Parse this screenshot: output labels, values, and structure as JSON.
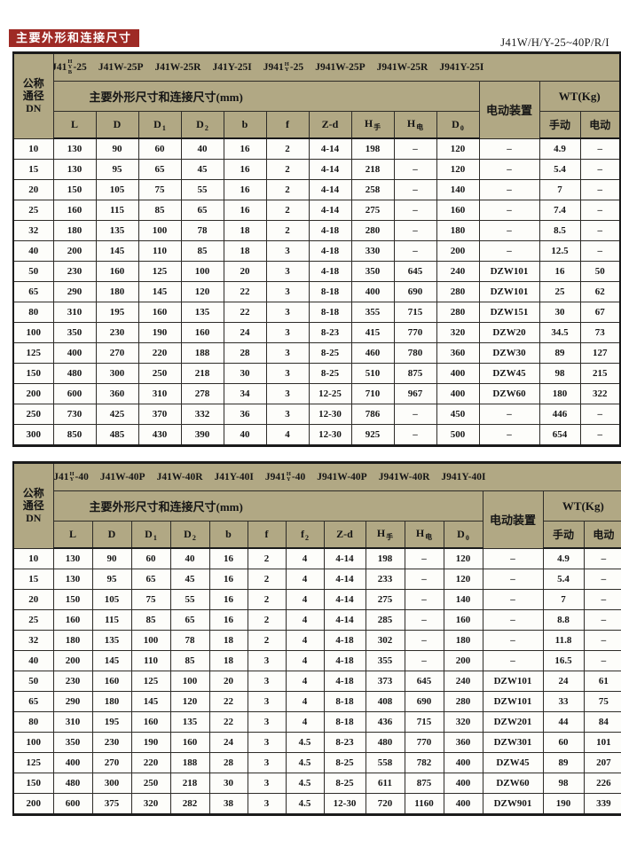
{
  "header": {
    "doc_code": "J41W/H/Y-25~40P/R/I",
    "banner": "主要外形和连接尺寸"
  },
  "labels": {
    "dn_l1": "公称",
    "dn_l2": "通径",
    "dn_l3": "DN",
    "dims_title": "主要外形尺寸和连接尺寸(mm)",
    "device": "电动装置",
    "wt": "WT(Kg)",
    "manual": "手动",
    "electric": "电动"
  },
  "colors": {
    "banner_bg": "#9e2a25",
    "banner_text": "#ffffff",
    "header_bg": "#b1a884",
    "row_bg": "#fdfdfa",
    "border": "#1b1b1b",
    "text": "#151515"
  },
  "tables": [
    {
      "models": [
        {
          "prefix": "J41",
          "stack": [
            "H",
            "Y",
            "B"
          ],
          "suffix": "-25"
        },
        {
          "text": "J41W-25P"
        },
        {
          "text": "J41W-25R"
        },
        {
          "text": "J41Y-25I"
        },
        {
          "prefix": "J941",
          "stack": [
            "H",
            "Y"
          ],
          "suffix": "-25"
        },
        {
          "text": "J941W-25P"
        },
        {
          "text": "J941W-25R"
        },
        {
          "text": "J941Y-25I"
        }
      ],
      "dim_cols": [
        {
          "main": "L"
        },
        {
          "main": "D"
        },
        {
          "main": "D",
          "sub": "1"
        },
        {
          "main": "D",
          "sub": "2"
        },
        {
          "main": "b"
        },
        {
          "main": "f"
        },
        {
          "main": "Z-d"
        },
        {
          "main": "H",
          "sub": "手"
        },
        {
          "main": "H",
          "sub": "电"
        },
        {
          "main": "D",
          "sub": "0"
        }
      ],
      "rows": [
        [
          "10",
          "130",
          "90",
          "60",
          "40",
          "16",
          "2",
          "4-14",
          "198",
          "–",
          "120",
          "–",
          "4.9",
          "–"
        ],
        [
          "15",
          "130",
          "95",
          "65",
          "45",
          "16",
          "2",
          "4-14",
          "218",
          "–",
          "120",
          "–",
          "5.4",
          "–"
        ],
        [
          "20",
          "150",
          "105",
          "75",
          "55",
          "16",
          "2",
          "4-14",
          "258",
          "–",
          "140",
          "–",
          "7",
          "–"
        ],
        [
          "25",
          "160",
          "115",
          "85",
          "65",
          "16",
          "2",
          "4-14",
          "275",
          "–",
          "160",
          "–",
          "7.4",
          "–"
        ],
        [
          "32",
          "180",
          "135",
          "100",
          "78",
          "18",
          "2",
          "4-18",
          "280",
          "–",
          "180",
          "–",
          "8.5",
          "–"
        ],
        [
          "40",
          "200",
          "145",
          "110",
          "85",
          "18",
          "3",
          "4-18",
          "330",
          "–",
          "200",
          "–",
          "12.5",
          "–"
        ],
        [
          "50",
          "230",
          "160",
          "125",
          "100",
          "20",
          "3",
          "4-18",
          "350",
          "645",
          "240",
          "DZW101",
          "16",
          "50"
        ],
        [
          "65",
          "290",
          "180",
          "145",
          "120",
          "22",
          "3",
          "8-18",
          "400",
          "690",
          "280",
          "DZW101",
          "25",
          "62"
        ],
        [
          "80",
          "310",
          "195",
          "160",
          "135",
          "22",
          "3",
          "8-18",
          "355",
          "715",
          "280",
          "DZW151",
          "30",
          "67"
        ],
        [
          "100",
          "350",
          "230",
          "190",
          "160",
          "24",
          "3",
          "8-23",
          "415",
          "770",
          "320",
          "DZW20",
          "34.5",
          "73"
        ],
        [
          "125",
          "400",
          "270",
          "220",
          "188",
          "28",
          "3",
          "8-25",
          "460",
          "780",
          "360",
          "DZW30",
          "89",
          "127"
        ],
        [
          "150",
          "480",
          "300",
          "250",
          "218",
          "30",
          "3",
          "8-25",
          "510",
          "875",
          "400",
          "DZW45",
          "98",
          "215"
        ],
        [
          "200",
          "600",
          "360",
          "310",
          "278",
          "34",
          "3",
          "12-25",
          "710",
          "967",
          "400",
          "DZW60",
          "180",
          "322"
        ],
        [
          "250",
          "730",
          "425",
          "370",
          "332",
          "36",
          "3",
          "12-30",
          "786",
          "–",
          "450",
          "–",
          "446",
          "–"
        ],
        [
          "300",
          "850",
          "485",
          "430",
          "390",
          "40",
          "4",
          "12-30",
          "925",
          "–",
          "500",
          "–",
          "654",
          "–"
        ]
      ]
    },
    {
      "models": [
        {
          "prefix": "J41",
          "stack": [
            "H",
            "Y"
          ],
          "suffix": "-40"
        },
        {
          "text": "J41W-40P"
        },
        {
          "text": "J41W-40R"
        },
        {
          "text": "J41Y-40I"
        },
        {
          "prefix": "J941",
          "stack": [
            "H",
            "Y"
          ],
          "suffix": "-40"
        },
        {
          "text": "J941W-40P"
        },
        {
          "text": "J941W-40R"
        },
        {
          "text": "J941Y-40I"
        }
      ],
      "dim_cols": [
        {
          "main": "L"
        },
        {
          "main": "D"
        },
        {
          "main": "D",
          "sub": "1"
        },
        {
          "main": "D",
          "sub": "2"
        },
        {
          "main": "b"
        },
        {
          "main": "f"
        },
        {
          "main": "f",
          "sub": "2"
        },
        {
          "main": "Z-d"
        },
        {
          "main": "H",
          "sub": "手"
        },
        {
          "main": "H",
          "sub": "电"
        },
        {
          "main": "D",
          "sub": "0"
        }
      ],
      "rows": [
        [
          "10",
          "130",
          "90",
          "60",
          "40",
          "16",
          "2",
          "4",
          "4-14",
          "198",
          "–",
          "120",
          "–",
          "4.9",
          "–"
        ],
        [
          "15",
          "130",
          "95",
          "65",
          "45",
          "16",
          "2",
          "4",
          "4-14",
          "233",
          "–",
          "120",
          "–",
          "5.4",
          "–"
        ],
        [
          "20",
          "150",
          "105",
          "75",
          "55",
          "16",
          "2",
          "4",
          "4-14",
          "275",
          "–",
          "140",
          "–",
          "7",
          "–"
        ],
        [
          "25",
          "160",
          "115",
          "85",
          "65",
          "16",
          "2",
          "4",
          "4-14",
          "285",
          "–",
          "160",
          "–",
          "8.8",
          "–"
        ],
        [
          "32",
          "180",
          "135",
          "100",
          "78",
          "18",
          "2",
          "4",
          "4-18",
          "302",
          "–",
          "180",
          "–",
          "11.8",
          "–"
        ],
        [
          "40",
          "200",
          "145",
          "110",
          "85",
          "18",
          "3",
          "4",
          "4-18",
          "355",
          "–",
          "200",
          "–",
          "16.5",
          "–"
        ],
        [
          "50",
          "230",
          "160",
          "125",
          "100",
          "20",
          "3",
          "4",
          "4-18",
          "373",
          "645",
          "240",
          "DZW101",
          "24",
          "61"
        ],
        [
          "65",
          "290",
          "180",
          "145",
          "120",
          "22",
          "3",
          "4",
          "8-18",
          "408",
          "690",
          "280",
          "DZW101",
          "33",
          "75"
        ],
        [
          "80",
          "310",
          "195",
          "160",
          "135",
          "22",
          "3",
          "4",
          "8-18",
          "436",
          "715",
          "320",
          "DZW201",
          "44",
          "84"
        ],
        [
          "100",
          "350",
          "230",
          "190",
          "160",
          "24",
          "3",
          "4.5",
          "8-23",
          "480",
          "770",
          "360",
          "DZW301",
          "60",
          "101"
        ],
        [
          "125",
          "400",
          "270",
          "220",
          "188",
          "28",
          "3",
          "4.5",
          "8-25",
          "558",
          "782",
          "400",
          "DZW45",
          "89",
          "207"
        ],
        [
          "150",
          "480",
          "300",
          "250",
          "218",
          "30",
          "3",
          "4.5",
          "8-25",
          "611",
          "875",
          "400",
          "DZW60",
          "98",
          "226"
        ],
        [
          "200",
          "600",
          "375",
          "320",
          "282",
          "38",
          "3",
          "4.5",
          "12-30",
          "720",
          "1160",
          "400",
          "DZW901",
          "190",
          "339"
        ]
      ]
    }
  ]
}
